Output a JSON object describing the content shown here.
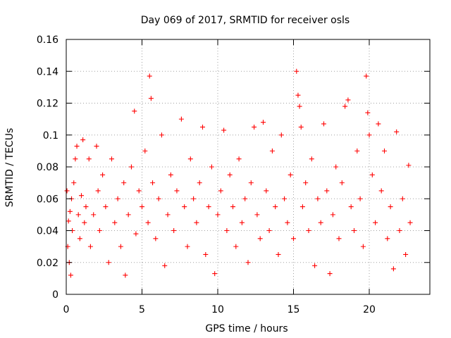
{
  "chart_data": {
    "type": "scatter",
    "title": "Day 069 of 2017, SRMTID for receiver osls",
    "xlabel": "GPS time / hours",
    "ylabel": "SRMTID / TECUs",
    "xlim": [
      0,
      24
    ],
    "ylim": [
      0,
      0.16
    ],
    "x_ticks": [
      0,
      5,
      10,
      15,
      20
    ],
    "x_tick_labels": [
      "0",
      "5",
      "10",
      "15",
      "20"
    ],
    "y_ticks": [
      0,
      0.02,
      0.04,
      0.06,
      0.08,
      0.1,
      0.12,
      0.14,
      0.16
    ],
    "y_tick_labels": [
      "0",
      "0.02",
      "0.04",
      "0.06",
      "0.08",
      "0.1",
      "0.12",
      "0.14",
      "0.16"
    ],
    "grid": true,
    "marker": "plus",
    "marker_color": "#ff0000",
    "series": [
      {
        "points": [
          [
            0.05,
            0.065
          ],
          [
            0.1,
            0.03
          ],
          [
            0.15,
            0.046
          ],
          [
            0.2,
            0.02
          ],
          [
            0.25,
            0.052
          ],
          [
            0.3,
            0.012
          ],
          [
            0.35,
            0.06
          ],
          [
            0.4,
            0.04
          ],
          [
            0.5,
            0.07
          ],
          [
            0.6,
            0.085
          ],
          [
            0.7,
            0.093
          ],
          [
            0.8,
            0.05
          ],
          [
            0.9,
            0.035
          ],
          [
            1.0,
            0.062
          ],
          [
            1.1,
            0.097
          ],
          [
            1.2,
            0.045
          ],
          [
            1.3,
            0.055
          ],
          [
            1.5,
            0.085
          ],
          [
            1.6,
            0.03
          ],
          [
            1.8,
            0.05
          ],
          [
            2.0,
            0.093
          ],
          [
            2.1,
            0.065
          ],
          [
            2.2,
            0.04
          ],
          [
            2.4,
            0.075
          ],
          [
            2.6,
            0.055
          ],
          [
            2.8,
            0.02
          ],
          [
            3.0,
            0.085
          ],
          [
            3.2,
            0.045
          ],
          [
            3.4,
            0.06
          ],
          [
            3.6,
            0.03
          ],
          [
            3.8,
            0.07
          ],
          [
            3.9,
            0.012
          ],
          [
            4.1,
            0.05
          ],
          [
            4.3,
            0.08
          ],
          [
            4.5,
            0.115
          ],
          [
            4.6,
            0.038
          ],
          [
            4.8,
            0.065
          ],
          [
            5.0,
            0.055
          ],
          [
            5.2,
            0.09
          ],
          [
            5.4,
            0.045
          ],
          [
            5.5,
            0.137
          ],
          [
            5.6,
            0.123
          ],
          [
            5.7,
            0.07
          ],
          [
            5.9,
            0.035
          ],
          [
            6.1,
            0.06
          ],
          [
            6.3,
            0.1
          ],
          [
            6.5,
            0.018
          ],
          [
            6.7,
            0.05
          ],
          [
            6.9,
            0.075
          ],
          [
            7.1,
            0.04
          ],
          [
            7.3,
            0.065
          ],
          [
            7.6,
            0.11
          ],
          [
            7.8,
            0.055
          ],
          [
            8.0,
            0.03
          ],
          [
            8.2,
            0.085
          ],
          [
            8.4,
            0.06
          ],
          [
            8.6,
            0.045
          ],
          [
            8.8,
            0.07
          ],
          [
            9.0,
            0.105
          ],
          [
            9.2,
            0.025
          ],
          [
            9.4,
            0.055
          ],
          [
            9.6,
            0.08
          ],
          [
            9.8,
            0.013
          ],
          [
            10.0,
            0.05
          ],
          [
            10.2,
            0.065
          ],
          [
            10.4,
            0.103
          ],
          [
            10.6,
            0.04
          ],
          [
            10.8,
            0.075
          ],
          [
            11.0,
            0.055
          ],
          [
            11.2,
            0.03
          ],
          [
            11.4,
            0.085
          ],
          [
            11.6,
            0.045
          ],
          [
            11.8,
            0.06
          ],
          [
            12.0,
            0.02
          ],
          [
            12.2,
            0.07
          ],
          [
            12.4,
            0.105
          ],
          [
            12.6,
            0.05
          ],
          [
            12.8,
            0.035
          ],
          [
            13.0,
            0.108
          ],
          [
            13.2,
            0.065
          ],
          [
            13.4,
            0.04
          ],
          [
            13.6,
            0.09
          ],
          [
            13.8,
            0.055
          ],
          [
            14.0,
            0.025
          ],
          [
            14.2,
            0.1
          ],
          [
            14.4,
            0.06
          ],
          [
            14.6,
            0.045
          ],
          [
            14.8,
            0.075
          ],
          [
            15.0,
            0.035
          ],
          [
            15.2,
            0.14
          ],
          [
            15.3,
            0.125
          ],
          [
            15.4,
            0.118
          ],
          [
            15.5,
            0.105
          ],
          [
            15.6,
            0.055
          ],
          [
            15.8,
            0.07
          ],
          [
            16.0,
            0.04
          ],
          [
            16.2,
            0.085
          ],
          [
            16.4,
            0.018
          ],
          [
            16.6,
            0.06
          ],
          [
            16.8,
            0.045
          ],
          [
            17.0,
            0.107
          ],
          [
            17.2,
            0.065
          ],
          [
            17.4,
            0.013
          ],
          [
            17.6,
            0.05
          ],
          [
            17.8,
            0.08
          ],
          [
            18.0,
            0.035
          ],
          [
            18.2,
            0.07
          ],
          [
            18.4,
            0.118
          ],
          [
            18.6,
            0.122
          ],
          [
            18.8,
            0.055
          ],
          [
            19.0,
            0.04
          ],
          [
            19.2,
            0.09
          ],
          [
            19.4,
            0.06
          ],
          [
            19.6,
            0.03
          ],
          [
            19.8,
            0.137
          ],
          [
            19.9,
            0.114
          ],
          [
            20.0,
            0.1
          ],
          [
            20.2,
            0.075
          ],
          [
            20.4,
            0.045
          ],
          [
            20.6,
            0.107
          ],
          [
            20.8,
            0.065
          ],
          [
            21.0,
            0.09
          ],
          [
            21.2,
            0.035
          ],
          [
            21.4,
            0.055
          ],
          [
            21.6,
            0.016
          ],
          [
            21.8,
            0.102
          ],
          [
            22.0,
            0.04
          ],
          [
            22.2,
            0.06
          ],
          [
            22.4,
            0.025
          ],
          [
            22.6,
            0.081
          ],
          [
            22.7,
            0.045
          ]
        ]
      }
    ]
  }
}
